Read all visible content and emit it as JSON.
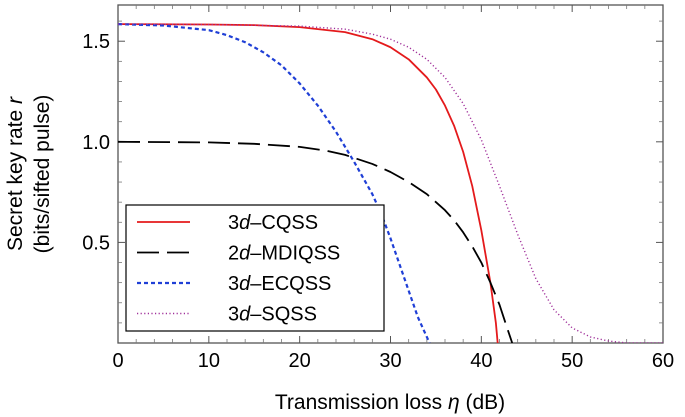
{
  "chart_data": {
    "type": "line",
    "xlabel": {
      "main": "Transmission loss ",
      "sym": "η",
      "unit": " (dB)"
    },
    "ylabel": {
      "line1": {
        "main": "Secret key rate ",
        "sym": "r"
      },
      "line2": "(bits/sifted pulse)"
    },
    "xlim": [
      0,
      60
    ],
    "ylim": [
      0,
      1.68
    ],
    "xticks": [
      0,
      10,
      20,
      30,
      40,
      50,
      60
    ],
    "xtick_labels": [
      "0",
      "10",
      "20",
      "30",
      "40",
      "50",
      "60"
    ],
    "yticks": [
      0.5,
      1.0,
      1.5
    ],
    "ytick_labels": [
      "0.5",
      "1.0",
      "1.5"
    ],
    "legend_position": "lower-left",
    "series": [
      {
        "name": "3d-CQSS",
        "label_num": "3",
        "label_var": "d",
        "label_rest": "–CQSS",
        "color": "#e41a1c",
        "dash": "solid",
        "points": [
          [
            0,
            1.585
          ],
          [
            10,
            1.583
          ],
          [
            15,
            1.58
          ],
          [
            20,
            1.57
          ],
          [
            25,
            1.545
          ],
          [
            28,
            1.51
          ],
          [
            30,
            1.47
          ],
          [
            32,
            1.41
          ],
          [
            34,
            1.32
          ],
          [
            35,
            1.26
          ],
          [
            36,
            1.18
          ],
          [
            37,
            1.08
          ],
          [
            38,
            0.95
          ],
          [
            39,
            0.78
          ],
          [
            40,
            0.56
          ],
          [
            41,
            0.3
          ],
          [
            41.6,
            0.1
          ],
          [
            41.8,
            0.0
          ]
        ]
      },
      {
        "name": "2d-MDIQSS",
        "label_num": "2",
        "label_var": "d",
        "label_rest": "–MDIQSS",
        "color": "#000000",
        "dash": "long-dash",
        "points": [
          [
            0,
            1.0
          ],
          [
            10,
            0.997
          ],
          [
            15,
            0.99
          ],
          [
            20,
            0.975
          ],
          [
            23,
            0.955
          ],
          [
            25,
            0.935
          ],
          [
            28,
            0.89
          ],
          [
            30,
            0.85
          ],
          [
            32,
            0.8
          ],
          [
            34,
            0.74
          ],
          [
            36,
            0.66
          ],
          [
            37,
            0.61
          ],
          [
            38,
            0.55
          ],
          [
            39,
            0.48
          ],
          [
            40,
            0.4
          ],
          [
            41,
            0.3
          ],
          [
            42,
            0.19
          ],
          [
            42.8,
            0.08
          ],
          [
            43.4,
            0.0
          ]
        ]
      },
      {
        "name": "3d-ECQSS",
        "label_num": "3",
        "label_var": "d",
        "label_rest": "–ECQSS",
        "color": "#1f3fd6",
        "dash": "short-dash",
        "points": [
          [
            0,
            1.585
          ],
          [
            5,
            1.578
          ],
          [
            10,
            1.555
          ],
          [
            12,
            1.53
          ],
          [
            14,
            1.495
          ],
          [
            16,
            1.445
          ],
          [
            18,
            1.38
          ],
          [
            20,
            1.29
          ],
          [
            22,
            1.18
          ],
          [
            24,
            1.05
          ],
          [
            26,
            0.9
          ],
          [
            27,
            0.82
          ],
          [
            28,
            0.74
          ],
          [
            29,
            0.64
          ],
          [
            30,
            0.52
          ],
          [
            31,
            0.39
          ],
          [
            32,
            0.26
          ],
          [
            33,
            0.13
          ],
          [
            34,
            0.03
          ],
          [
            34.3,
            0.0
          ]
        ]
      },
      {
        "name": "3d-SQSS",
        "label_num": "3",
        "label_var": "d",
        "label_rest": "–SQSS",
        "color": "#a0309a",
        "dash": "dotted",
        "points": [
          [
            0,
            1.585
          ],
          [
            10,
            1.583
          ],
          [
            20,
            1.575
          ],
          [
            25,
            1.56
          ],
          [
            28,
            1.535
          ],
          [
            30,
            1.51
          ],
          [
            32,
            1.47
          ],
          [
            34,
            1.41
          ],
          [
            36,
            1.32
          ],
          [
            38,
            1.19
          ],
          [
            40,
            1.01
          ],
          [
            42,
            0.78
          ],
          [
            44,
            0.54
          ],
          [
            46,
            0.32
          ],
          [
            48,
            0.165
          ],
          [
            50,
            0.075
          ],
          [
            52,
            0.03
          ],
          [
            54,
            0.01
          ],
          [
            56,
            0.0
          ],
          [
            60,
            0.0
          ]
        ]
      }
    ]
  }
}
